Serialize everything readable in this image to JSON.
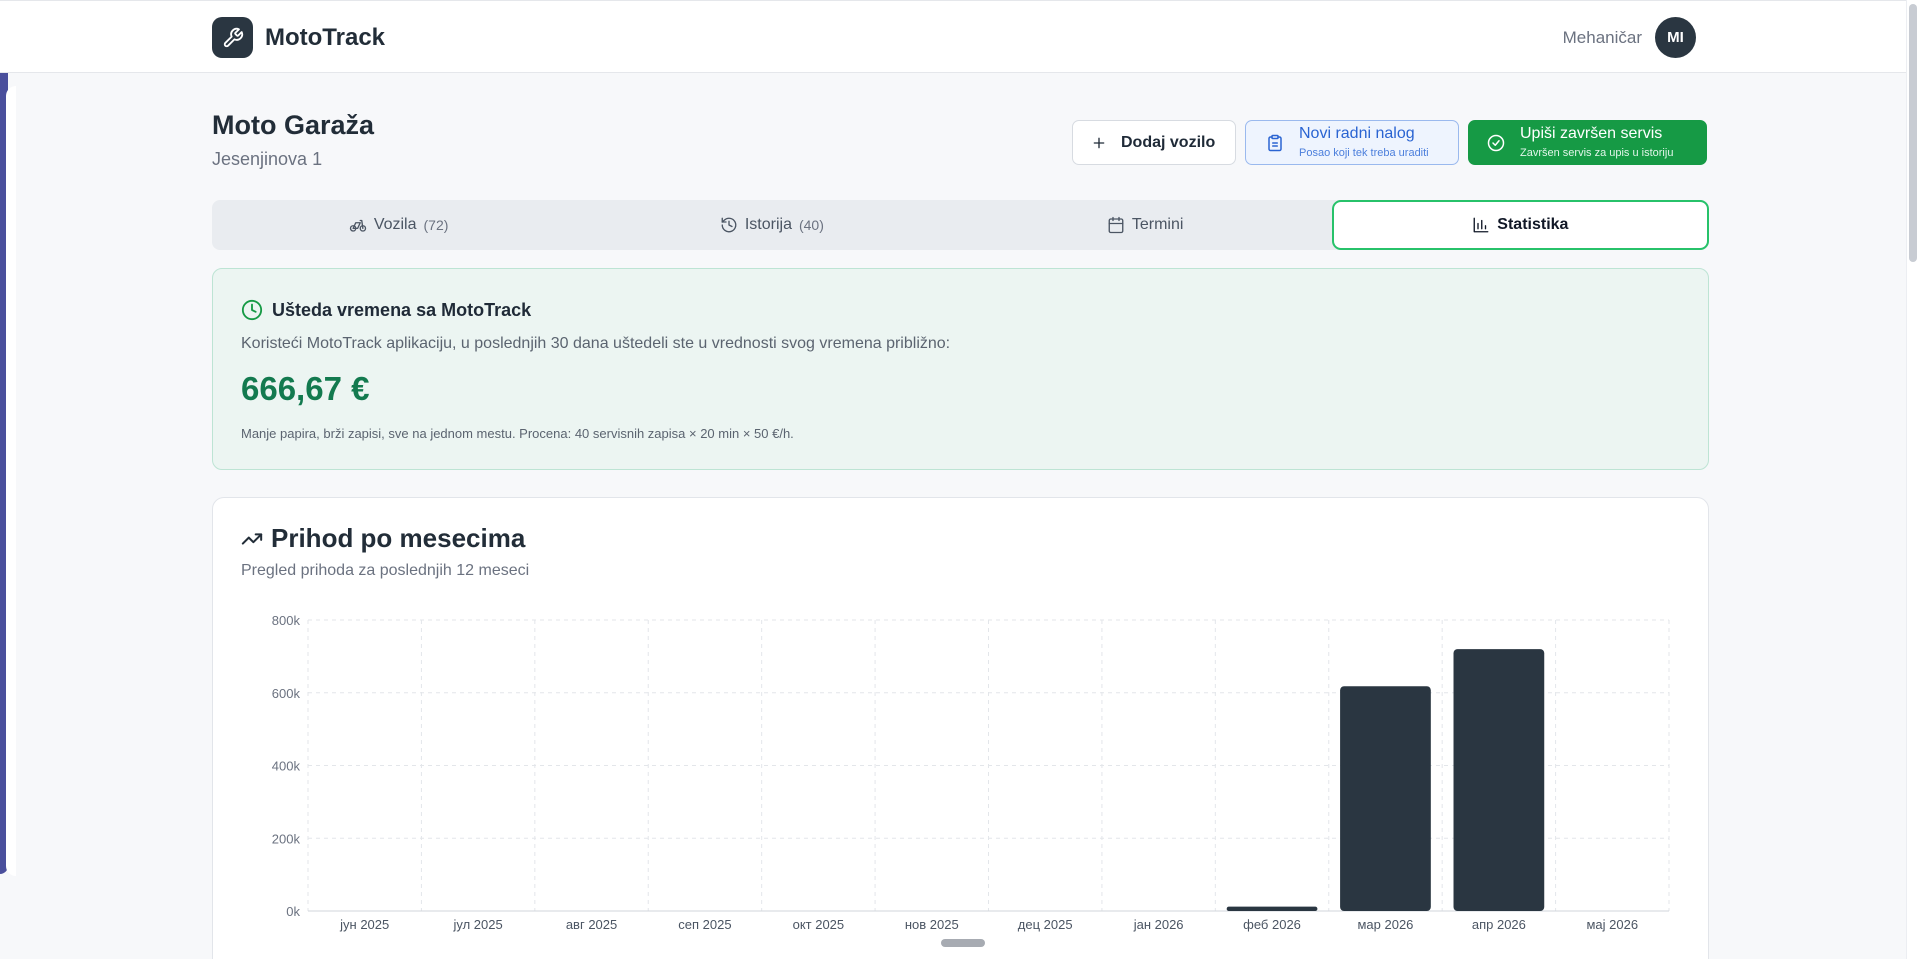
{
  "app": {
    "name": "MotoTrack",
    "user_name": "Mehaničar",
    "user_initials": "MI"
  },
  "garage": {
    "name": "Moto Garaža",
    "address": "Jesenjinova 1"
  },
  "actions": {
    "add_vehicle": "Dodaj vozilo",
    "new_order_title": "Novi radni nalog",
    "new_order_sub": "Posao koji tek treba uraditi",
    "log_service_title": "Upiši završen servis",
    "log_service_sub": "Završen servis za upis u istoriju"
  },
  "tabs": [
    {
      "label": "Vozila",
      "count": "(72)",
      "icon": "bike-icon"
    },
    {
      "label": "Istorija",
      "count": "(40)",
      "icon": "history-icon"
    },
    {
      "label": "Termini",
      "count": "",
      "icon": "calendar-icon"
    },
    {
      "label": "Statistika",
      "count": "",
      "icon": "bar-chart-icon",
      "active": true
    }
  ],
  "savings": {
    "title": "Ušteda vremena sa MotoTrack",
    "description": "Koristeći MotoTrack aplikaciju, u poslednjih 30 dana uštedeli ste u vrednosti svog vremena približno:",
    "amount": "666,67 €",
    "note": "Manje papira, brži zapisi, sve na jednom mestu. Procena: 40 servisnih zapisa × 20 min × 50 €/h."
  },
  "revenue": {
    "title": "Prihod po mesecima",
    "subtitle": "Pregled prihoda za poslednjih 12 meseci"
  },
  "chart_data": {
    "type": "bar",
    "title": "Prihod po mesecima",
    "categories": [
      "јун 2025",
      "јул 2025",
      "авг 2025",
      "сеп 2025",
      "окт 2025",
      "нов 2025",
      "дец 2025",
      "јан 2026",
      "феб 2026",
      "мар 2026",
      "апр 2026",
      "мај 2026"
    ],
    "values": [
      0,
      0,
      0,
      0,
      0,
      0,
      0,
      0,
      12000,
      618000,
      720000,
      0
    ],
    "yticks": [
      "0k",
      "200k",
      "400k",
      "600k",
      "800k"
    ],
    "ylim": [
      0,
      800000
    ],
    "grid": true,
    "bar_color": "#2a3641"
  },
  "colors": {
    "brand_dark": "#2a3641",
    "accent_green": "#169a45",
    "accent_blue": "#2a64d2",
    "savings_green": "#137a4f"
  }
}
